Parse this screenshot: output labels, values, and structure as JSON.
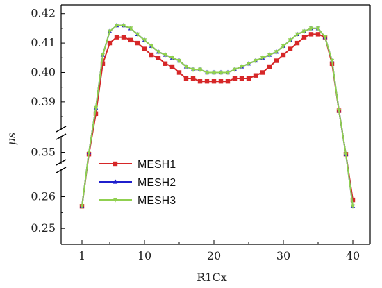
{
  "chart_data": {
    "type": "line",
    "xlabel": "R1Cx",
    "ylabel": "μs",
    "xlim": [
      -2,
      42.5
    ],
    "x_ticks": [
      1,
      10,
      20,
      30,
      40
    ],
    "y_segments": [
      {
        "ylim": [
          0.381,
          0.423
        ],
        "ticks": [
          0.39,
          0.4,
          0.41,
          0.42
        ]
      },
      {
        "ylim": [
          0.345,
          0.358
        ],
        "ticks": [
          0.35
        ]
      },
      {
        "ylim": [
          0.245,
          0.268
        ],
        "ticks": [
          0.25,
          0.26
        ]
      }
    ],
    "legend_position": "lower-left",
    "grid": false,
    "x": [
      1,
      2,
      3,
      4,
      5,
      6,
      7,
      8,
      9,
      10,
      11,
      12,
      13,
      14,
      15,
      16,
      17,
      18,
      19,
      20,
      21,
      22,
      23,
      24,
      25,
      26,
      27,
      28,
      29,
      30,
      31,
      32,
      33,
      34,
      35,
      36,
      37,
      38,
      39,
      40
    ],
    "series": [
      {
        "name": "MESH1",
        "color": "#d62728",
        "marker": "square",
        "values": [
          0.257,
          0.349,
          0.386,
          0.403,
          0.41,
          0.412,
          0.412,
          0.411,
          0.41,
          0.408,
          0.406,
          0.405,
          0.403,
          0.402,
          0.4,
          0.398,
          0.398,
          0.397,
          0.397,
          0.397,
          0.397,
          0.397,
          0.398,
          0.398,
          0.398,
          0.399,
          0.4,
          0.402,
          0.404,
          0.406,
          0.408,
          0.41,
          0.412,
          0.413,
          0.413,
          0.412,
          0.403,
          0.387,
          0.349,
          0.259
        ]
      },
      {
        "name": "MESH2",
        "color": "#1f1fcc",
        "marker": "triangle-up",
        "values": [
          0.257,
          0.35,
          0.388,
          0.406,
          0.414,
          0.416,
          0.416,
          0.415,
          0.413,
          0.411,
          0.409,
          0.407,
          0.406,
          0.405,
          0.404,
          0.402,
          0.401,
          0.401,
          0.4,
          0.4,
          0.4,
          0.4,
          0.401,
          0.402,
          0.403,
          0.404,
          0.405,
          0.406,
          0.407,
          0.409,
          0.411,
          0.413,
          0.414,
          0.415,
          0.415,
          0.412,
          0.404,
          0.387,
          0.349,
          0.257
        ]
      },
      {
        "name": "MESH3",
        "color": "#90d050",
        "marker": "triangle-down",
        "values": [
          0.257,
          0.35,
          0.388,
          0.406,
          0.414,
          0.416,
          0.416,
          0.415,
          0.413,
          0.411,
          0.409,
          0.407,
          0.406,
          0.405,
          0.404,
          0.402,
          0.401,
          0.401,
          0.4,
          0.4,
          0.4,
          0.4,
          0.401,
          0.402,
          0.403,
          0.404,
          0.405,
          0.406,
          0.407,
          0.409,
          0.411,
          0.413,
          0.414,
          0.415,
          0.415,
          0.412,
          0.404,
          0.387,
          0.349,
          0.257
        ]
      }
    ]
  }
}
